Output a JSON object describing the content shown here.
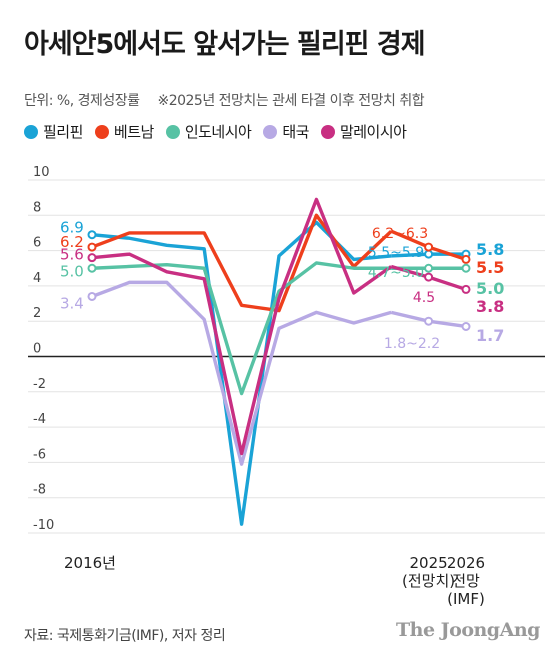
{
  "header": {
    "title": "아세안5에서도 앞서가는 필리핀 경제",
    "unit": "단위: %, 경제성장률",
    "note": "※2025년 전망치는 관세 타결 이후 전망치 취합"
  },
  "footer": {
    "source": "자료: 국제통화기금(IMF), 저자 정리",
    "brand": "The JoongAng"
  },
  "chart_data": {
    "type": "line",
    "x": [
      "2016",
      "2017",
      "2018",
      "2019",
      "2020",
      "2021",
      "2022",
      "2023",
      "2024",
      "2025",
      "2026"
    ],
    "x_tick_labels": [
      {
        "index": 0,
        "lines": [
          "2016년"
        ]
      },
      {
        "index": 9,
        "lines": [
          "2025",
          "(전망치)"
        ]
      },
      {
        "index": 10,
        "lines": [
          "2026",
          "전망",
          "(IMF)"
        ]
      }
    ],
    "ylim": [
      -10,
      10
    ],
    "yticks": [
      10,
      8,
      6,
      4,
      2,
      0,
      -2,
      -4,
      -6,
      -8,
      -10
    ],
    "series": [
      {
        "name": "필리핀",
        "color": "#1aa3d6",
        "values": [
          6.9,
          6.7,
          6.3,
          6.1,
          -9.5,
          5.7,
          7.6,
          5.5,
          5.7,
          5.8,
          5.8
        ],
        "start_label": "6.9",
        "end_label": "5.8",
        "forecast_label": "5.5~5.9"
      },
      {
        "name": "베트남",
        "color": "#ee3f1c",
        "values": [
          6.2,
          7.0,
          7.0,
          7.0,
          2.9,
          2.6,
          8.0,
          5.1,
          7.1,
          6.2,
          5.5
        ],
        "start_label": "6.2",
        "end_label": "5.5",
        "forecast_label": "6.2~6.3"
      },
      {
        "name": "인도네시아",
        "color": "#57c2a4",
        "values": [
          5.0,
          5.1,
          5.2,
          5.0,
          -2.1,
          3.7,
          5.3,
          5.0,
          5.0,
          5.0,
          5.0
        ],
        "start_label": "5.0",
        "end_label": "5.0",
        "forecast_label": "4.7~5.0"
      },
      {
        "name": "태국",
        "color": "#b7a9e4",
        "values": [
          3.4,
          4.2,
          4.2,
          2.1,
          -6.1,
          1.6,
          2.5,
          1.9,
          2.5,
          2.0,
          1.7
        ],
        "start_label": "3.4",
        "end_label": "1.7",
        "forecast_label": "1.8~2.2"
      },
      {
        "name": "말레이시아",
        "color": "#c82f82",
        "values": [
          5.6,
          5.8,
          4.8,
          4.4,
          -5.5,
          3.3,
          8.9,
          3.6,
          5.1,
          4.5,
          3.8
        ],
        "start_label": "5.6",
        "end_label": "3.8",
        "forecast_label": "4.5"
      }
    ]
  }
}
